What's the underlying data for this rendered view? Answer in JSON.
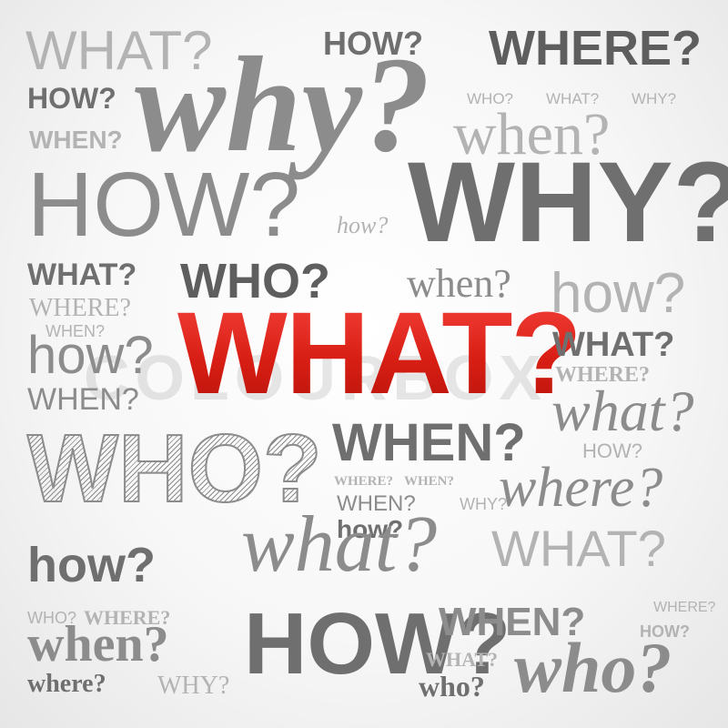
{
  "hero_word": "WHAT?",
  "watermark_text": "COLOURBOX",
  "accent_color": "#e0261c",
  "words": [
    "WHAT?",
    "HOW?",
    "WHERE?",
    "HOW?",
    "why?",
    "WHEN?",
    "WHO?",
    "WHAT?",
    "WHY?",
    "when?",
    "HOW?",
    "how?",
    "WHY?",
    "WHAT?",
    "WHO?",
    "when?",
    "how?",
    "WHERE?",
    "WHEN?",
    "how?",
    "WHEN?",
    "WHAT?",
    "WHERE?",
    "what?",
    "WHO?",
    "WHEN?",
    "HOW?",
    "where?",
    "WHERE?",
    "WHEN?",
    "WHY?",
    "WHEN?",
    "how?",
    "what?",
    "how?",
    "WHAT?",
    "WHO?",
    "WHERE?",
    "when?",
    "where?",
    "WHY?",
    "HOW?",
    "WHEN?",
    "WHERE?",
    "HOW?",
    "WHAT?",
    "who?",
    "who?"
  ]
}
